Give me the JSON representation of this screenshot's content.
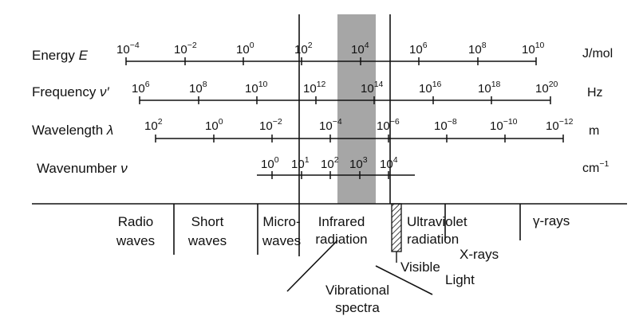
{
  "rows": {
    "energy": {
      "label_text": "Energy ",
      "label_symbol": "E",
      "unit": "J/mol",
      "ticks": [
        {
          "base": "10",
          "exp": "−4"
        },
        {
          "base": "10",
          "exp": "−2"
        },
        {
          "base": "10",
          "exp": "0"
        },
        {
          "base": "10",
          "exp": "2"
        },
        {
          "base": "10",
          "exp": "4"
        },
        {
          "base": "10",
          "exp": "6"
        },
        {
          "base": "10",
          "exp": "8"
        },
        {
          "base": "10",
          "exp": "10"
        }
      ]
    },
    "frequency": {
      "label_text": "Frequency ",
      "label_symbol": "ν′",
      "unit": "Hz",
      "ticks": [
        {
          "base": "10",
          "exp": "6"
        },
        {
          "base": "10",
          "exp": "8"
        },
        {
          "base": "10",
          "exp": "10"
        },
        {
          "base": "10",
          "exp": "12"
        },
        {
          "base": "10",
          "exp": "14"
        },
        {
          "base": "10",
          "exp": "16"
        },
        {
          "base": "10",
          "exp": "18"
        },
        {
          "base": "10",
          "exp": "20"
        }
      ]
    },
    "wavelength": {
      "label_text": "Wavelength ",
      "label_symbol": "λ",
      "unit": "m",
      "ticks": [
        {
          "base": "10",
          "exp": "2"
        },
        {
          "base": "10",
          "exp": "0"
        },
        {
          "base": "10",
          "exp": "−2"
        },
        {
          "base": "10",
          "exp": "−4"
        },
        {
          "base": "10",
          "exp": "−6"
        },
        {
          "base": "10",
          "exp": "−8"
        },
        {
          "base": "10",
          "exp": "−10"
        },
        {
          "base": "10",
          "exp": "−12"
        }
      ]
    },
    "wavenumber": {
      "label_text": "Wavenumber ",
      "label_symbol": "ν",
      "unit_base": "cm",
      "unit_exp": "−1",
      "ticks": [
        {
          "base": "10",
          "exp": "0"
        },
        {
          "base": "10",
          "exp": "1"
        },
        {
          "base": "10",
          "exp": "2"
        },
        {
          "base": "10",
          "exp": "3"
        },
        {
          "base": "10",
          "exp": "4"
        }
      ]
    }
  },
  "regions": {
    "radio": [
      "Radio",
      "waves"
    ],
    "short": [
      "Short",
      "waves"
    ],
    "micro": [
      "Micro-",
      "waves"
    ],
    "infrared": [
      "Infrared",
      "radiation"
    ],
    "ultraviolet": [
      "Ultraviolet",
      "radiation"
    ],
    "gamma": "γ-rays",
    "xrays": "X-rays",
    "visible": "Visible",
    "light": "Light",
    "vibrational": [
      "Vibrational",
      "spectra"
    ]
  },
  "colors": {
    "ink": "#111111",
    "infrared_band": "#a6a6a6",
    "visible_hatch": "#111111"
  }
}
